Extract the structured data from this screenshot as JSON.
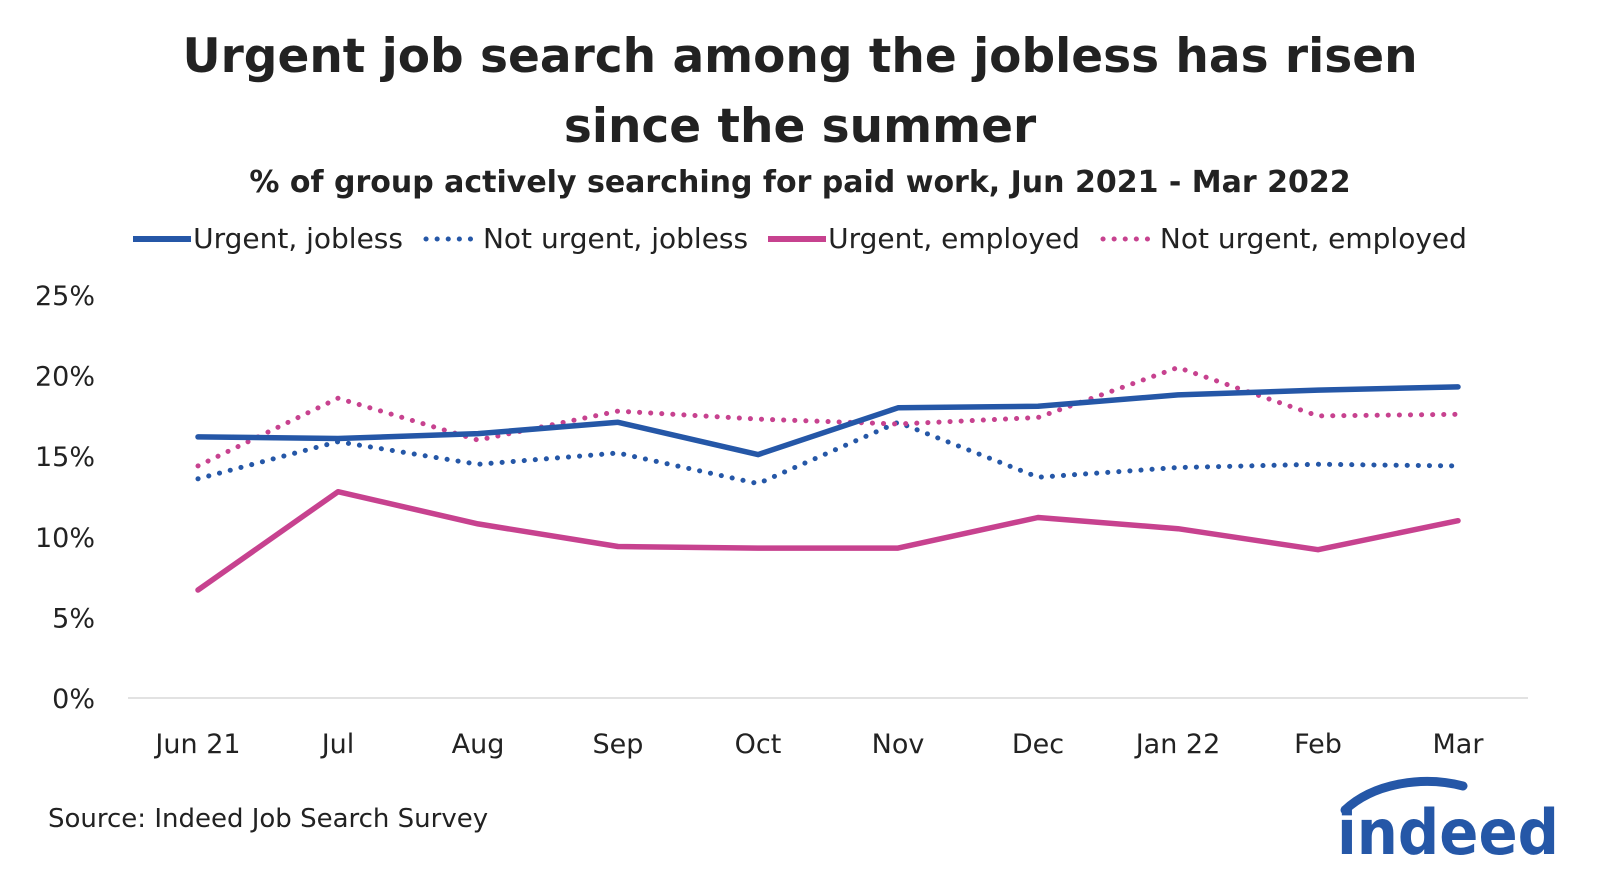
{
  "chart_data": {
    "type": "line",
    "title_lines": [
      "Urgent job search among the jobless has risen",
      "since the summer"
    ],
    "subtitle": "% of group actively searching for paid work, Jun 2021 - Mar 2022",
    "categories": [
      "Jun 21",
      "Jul",
      "Aug",
      "Sep",
      "Oct",
      "Nov",
      "Dec",
      "Jan 22",
      "Feb",
      "Mar"
    ],
    "y_ticks": [
      "0%",
      "5%",
      "10%",
      "15%",
      "20%",
      "25%"
    ],
    "ylim": [
      0,
      25
    ],
    "grid": false,
    "legend_position": "top",
    "series": [
      {
        "name": "Urgent, jobless",
        "color": "#2557a7",
        "style": "solid",
        "values": [
          16.2,
          16.1,
          16.4,
          17.1,
          15.1,
          18.0,
          18.1,
          18.8,
          19.1,
          19.3
        ]
      },
      {
        "name": "Not urgent, jobless",
        "color": "#2557a7",
        "style": "dotted",
        "values": [
          13.6,
          15.9,
          14.5,
          15.2,
          13.3,
          17.1,
          13.7,
          14.3,
          14.5,
          14.4
        ]
      },
      {
        "name": "Urgent, employed",
        "color": "#c7428f",
        "style": "solid",
        "values": [
          6.7,
          12.8,
          10.8,
          9.4,
          9.3,
          9.3,
          11.2,
          10.5,
          9.2,
          11.0
        ]
      },
      {
        "name": "Not urgent, employed",
        "color": "#c7428f",
        "style": "dotted",
        "values": [
          14.4,
          18.6,
          16.0,
          17.8,
          17.3,
          17.0,
          17.4,
          20.5,
          17.5,
          17.6
        ]
      }
    ]
  },
  "source": "Source: Indeed Job Search Survey",
  "logo": {
    "text": "indeed",
    "color": "#2557a7"
  }
}
